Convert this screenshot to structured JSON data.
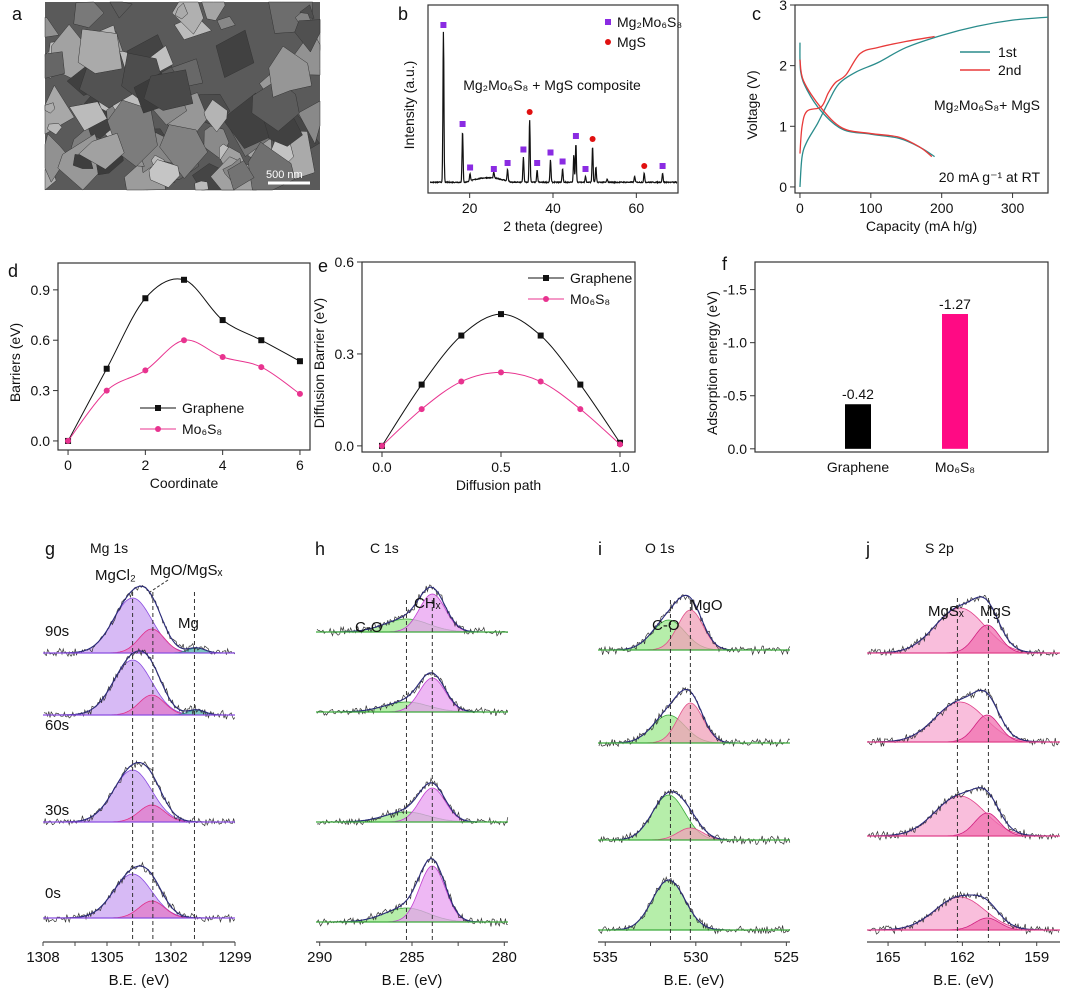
{
  "panels": {
    "a": {
      "letter": "a",
      "scale_bar": "500 nm"
    }
  },
  "chart_data": [
    {
      "panel": "b",
      "letter": "b",
      "type": "line",
      "title": "Mg₂Mo₆S₈ + MgS composite",
      "xlabel": "2 theta (degree)",
      "ylabel": "Intensity (a.u.)",
      "xlim": [
        10,
        70
      ],
      "xticks": [
        20,
        40,
        60
      ],
      "legend": [
        {
          "label": "Mg₂Mo₆S₈",
          "marker": "square",
          "color": "#8a2be2"
        },
        {
          "label": "MgS",
          "marker": "circle",
          "color": "#e01010"
        }
      ],
      "legend_position": "top-right",
      "peaks": [
        [
          13.7,
          1.0,
          "Mg₂Mo₆S₈"
        ],
        [
          18.3,
          0.34,
          "Mg₂Mo₆S₈"
        ],
        [
          20.1,
          0.05,
          "Mg₂Mo₆S₈"
        ],
        [
          25.8,
          0.04,
          "Mg₂Mo₆S₈"
        ],
        [
          29.1,
          0.08,
          "Mg₂Mo₆S₈"
        ],
        [
          32.9,
          0.17,
          "Mg₂Mo₆S₈"
        ],
        [
          34.4,
          0.42,
          "MgS"
        ],
        [
          36.2,
          0.08,
          "Mg₂Mo₆S₈"
        ],
        [
          39.4,
          0.15,
          "Mg₂Mo₆S₈"
        ],
        [
          42.3,
          0.09,
          "Mg₂Mo₆S₈"
        ],
        [
          45.0,
          0.18,
          ""
        ],
        [
          45.5,
          0.26,
          "Mg₂Mo₆S₈"
        ],
        [
          47.8,
          0.04,
          "Mg₂Mo₆S₈"
        ],
        [
          49.5,
          0.24,
          "MgS"
        ],
        [
          50.3,
          0.1,
          ""
        ],
        [
          53.0,
          0.02,
          ""
        ],
        [
          59.6,
          0.04,
          ""
        ],
        [
          61.9,
          0.06,
          "MgS"
        ],
        [
          66.3,
          0.06,
          "Mg₂Mo₆S₈"
        ]
      ]
    },
    {
      "panel": "c",
      "letter": "c",
      "type": "line",
      "xlabel": "Capacity (mA h/g)",
      "ylabel": "Voltage (V)",
      "xlim": [
        -7,
        350
      ],
      "ylim": [
        -0.1,
        3
      ],
      "xticks": [
        0,
        100,
        200,
        300
      ],
      "yticks": [
        0,
        1,
        2,
        3
      ],
      "annotation": "Mg₂Mo₆S₈+ MgS",
      "condition": "20 mA g⁻¹ at RT",
      "legend_position": "top-right",
      "series": [
        {
          "name": "1st",
          "color": "#2a8c8c",
          "charge": [
            [
              0,
              0
            ],
            [
              3,
              0.5
            ],
            [
              10,
              0.75
            ],
            [
              25,
              1.05
            ],
            [
              40,
              1.4
            ],
            [
              55,
              1.7
            ],
            [
              80,
              1.9
            ],
            [
              110,
              2.05
            ],
            [
              150,
              2.3
            ],
            [
              200,
              2.5
            ],
            [
              250,
              2.65
            ],
            [
              300,
              2.75
            ],
            [
              350,
              2.8
            ]
          ],
          "discharge": [
            [
              0,
              2.38
            ],
            [
              1,
              1.9
            ],
            [
              10,
              1.6
            ],
            [
              30,
              1.25
            ],
            [
              60,
              0.95
            ],
            [
              100,
              0.87
            ],
            [
              140,
              0.8
            ],
            [
              170,
              0.65
            ],
            [
              190,
              0.5
            ]
          ]
        },
        {
          "name": "2nd",
          "color": "#e83a3a",
          "charge": [
            [
              0,
              0.55
            ],
            [
              3,
              1.0
            ],
            [
              10,
              1.25
            ],
            [
              30,
              1.32
            ],
            [
              40,
              1.55
            ],
            [
              50,
              1.72
            ],
            [
              65,
              1.85
            ],
            [
              85,
              2.2
            ],
            [
              110,
              2.3
            ],
            [
              150,
              2.4
            ],
            [
              190,
              2.48
            ]
          ],
          "discharge": [
            [
              0,
              2.1
            ],
            [
              5,
              1.75
            ],
            [
              30,
              1.3
            ],
            [
              60,
              0.97
            ],
            [
              100,
              0.88
            ],
            [
              140,
              0.82
            ],
            [
              170,
              0.65
            ],
            [
              186,
              0.5
            ]
          ]
        }
      ]
    },
    {
      "panel": "d",
      "letter": "d",
      "type": "line",
      "xlabel": "Coordinate",
      "ylabel": "Barriers (eV)",
      "xlim": [
        -0.26,
        6.26
      ],
      "ylim": [
        -0.054,
        1.06
      ],
      "xticks": [
        0,
        2,
        4,
        6
      ],
      "yticks": [
        0.0,
        0.3,
        0.6,
        0.9
      ],
      "ytick_labels": [
        "0.0",
        "0.3",
        "0.6",
        "0.9"
      ],
      "legend_position": "bottom-center",
      "x": [
        0,
        1,
        2,
        3,
        4,
        5,
        6
      ],
      "series": [
        {
          "name": "Graphene",
          "color": "#111111",
          "marker": "square",
          "values": [
            0,
            0.43,
            0.85,
            0.96,
            0.72,
            0.6,
            0.475
          ]
        },
        {
          "name": "Mo₆S₈",
          "color": "#e8338f",
          "marker": "circle",
          "values": [
            0,
            0.3,
            0.42,
            0.6,
            0.5,
            0.44,
            0.28
          ]
        }
      ]
    },
    {
      "panel": "e",
      "letter": "e",
      "type": "line",
      "xlabel": "Diffusion path",
      "ylabel": "Diffusion Barrier (eV)",
      "xlim": [
        -0.084,
        1.063
      ],
      "ylim": [
        -0.02,
        0.6
      ],
      "xticks": [
        0,
        0.5,
        1.0
      ],
      "xtick_labels": [
        "0.0",
        "0.5",
        "1.0"
      ],
      "yticks": [
        0.0,
        0.3,
        0.6
      ],
      "ytick_labels": [
        "0.0",
        "0.3",
        "0.6"
      ],
      "legend_position": "top-right",
      "x": [
        0,
        0.1667,
        0.3333,
        0.5,
        0.6667,
        0.8333,
        1.0
      ],
      "series": [
        {
          "name": "Graphene",
          "color": "#111111",
          "marker": "square",
          "values": [
            0,
            0.2,
            0.36,
            0.43,
            0.36,
            0.2,
            0.01
          ]
        },
        {
          "name": "Mo₆S₈",
          "color": "#e8338f",
          "marker": "circle",
          "values": [
            0,
            0.12,
            0.21,
            0.24,
            0.21,
            0.12,
            0.005
          ]
        }
      ]
    },
    {
      "panel": "f",
      "letter": "f",
      "type": "bar",
      "ylabel": "Adsorption energy (eV)",
      "ylim": [
        0.03,
        -1.76
      ],
      "yticks": [
        0,
        -0.5,
        -1.0,
        -1.5
      ],
      "ytick_labels": [
        "0.0",
        "-0.5",
        "-1.0",
        "-1.5"
      ],
      "categories": [
        "Graphene",
        "Mo₆S₈"
      ],
      "values": [
        -0.42,
        -1.27
      ],
      "value_labels": [
        "-0.42",
        "-1.27"
      ],
      "colors": [
        "#000000",
        "#ff0a84"
      ]
    },
    {
      "panel": "g",
      "letter": "g",
      "type": "area",
      "title": "Mg 1s",
      "xlabel": "B.E. (eV)",
      "xlim": [
        1308,
        1299
      ],
      "xticks": [
        1308,
        1305,
        1302,
        1299
      ],
      "peaks": [
        {
          "label": "MgCl₂",
          "center": 1303.8,
          "sigma": 0.9,
          "fill": "#c9a3f2",
          "stroke": "#8a4de0"
        },
        {
          "label": "MgO/MgSₓ",
          "center": 1302.9,
          "sigma": 0.6,
          "fill": "#e27ac8",
          "stroke": "#e0308a"
        },
        {
          "label": "Mg",
          "center": 1300.8,
          "sigma": 0.4,
          "fill": "#4fb0a8",
          "stroke": "#2a8c8c"
        }
      ],
      "reference_lines": [
        1303.8,
        1302.85,
        1300.9
      ],
      "spectra": [
        {
          "label": "90s",
          "heights": [
            55,
            24,
            5
          ]
        },
        {
          "label": "60s",
          "heights": [
            55,
            20,
            5
          ]
        },
        {
          "label": "30s",
          "heights": [
            52,
            17,
            0
          ]
        },
        {
          "label": "0s",
          "heights": [
            44,
            17,
            0
          ]
        }
      ]
    },
    {
      "panel": "h",
      "letter": "h",
      "type": "area",
      "title": "C 1s",
      "xlabel": "B.E. (eV)",
      "xlim": [
        290.2,
        279.8
      ],
      "xticks": [
        290,
        285,
        280
      ],
      "peaks": [
        {
          "label": "C-O",
          "center": 285.3,
          "sigma": 1.2,
          "fill": "#9ee88e",
          "stroke": "#3caa3c"
        },
        {
          "label": "CHₓ",
          "center": 283.9,
          "sigma": 0.7,
          "fill": "#e8a0f0",
          "stroke": "#c040d0"
        }
      ],
      "reference_lines": [
        285.3,
        283.9
      ],
      "spectra": [
        {
          "label": "",
          "heights": [
            13,
            38
          ]
        },
        {
          "label": "",
          "heights": [
            10,
            34
          ]
        },
        {
          "label": "",
          "heights": [
            10,
            34
          ]
        },
        {
          "label": "",
          "heights": [
            14,
            56
          ]
        }
      ]
    },
    {
      "panel": "i",
      "letter": "i",
      "type": "area",
      "title": "O 1s",
      "xlabel": "B.E. (eV)",
      "xlim": [
        535.4,
        524.8
      ],
      "xticks": [
        535,
        530,
        525
      ],
      "peaks": [
        {
          "label": "C-O",
          "center": 531.5,
          "sigma": 0.9,
          "fill": "#9ee88e",
          "stroke": "#3caa3c"
        },
        {
          "label": "MgO",
          "center": 530.3,
          "sigma": 0.7,
          "fill": "#f0a0b8",
          "stroke": "#e0508a"
        }
      ],
      "reference_lines": [
        531.4,
        530.3
      ],
      "spectra": [
        {
          "label": "",
          "heights": [
            30,
            40
          ]
        },
        {
          "label": "",
          "heights": [
            28,
            40
          ]
        },
        {
          "label": "",
          "heights": [
            45,
            12
          ]
        },
        {
          "label": "",
          "heights": [
            50,
            0
          ]
        }
      ]
    },
    {
      "panel": "j",
      "letter": "j",
      "type": "area",
      "title": "S 2p",
      "xlabel": "B.E. (eV)",
      "xlim": [
        165.85,
        158.06
      ],
      "xticks": [
        165,
        162,
        159
      ],
      "peaks": [
        {
          "label": "MgSₓ",
          "center": 162.1,
          "sigma": 1.0,
          "fill": "#f7a8d0",
          "stroke": "#e0408a"
        },
        {
          "label": "MgS",
          "center": 161.0,
          "sigma": 0.5,
          "fill": "#f070b0",
          "stroke": "#d02080"
        }
      ],
      "reference_lines": [
        162.2,
        160.95
      ],
      "spectra": [
        {
          "label": "",
          "heights": [
            45,
            28
          ]
        },
        {
          "label": "",
          "heights": [
            40,
            27
          ]
        },
        {
          "label": "",
          "heights": [
            40,
            23
          ]
        },
        {
          "label": "",
          "heights": [
            33,
            12
          ]
        }
      ]
    }
  ]
}
